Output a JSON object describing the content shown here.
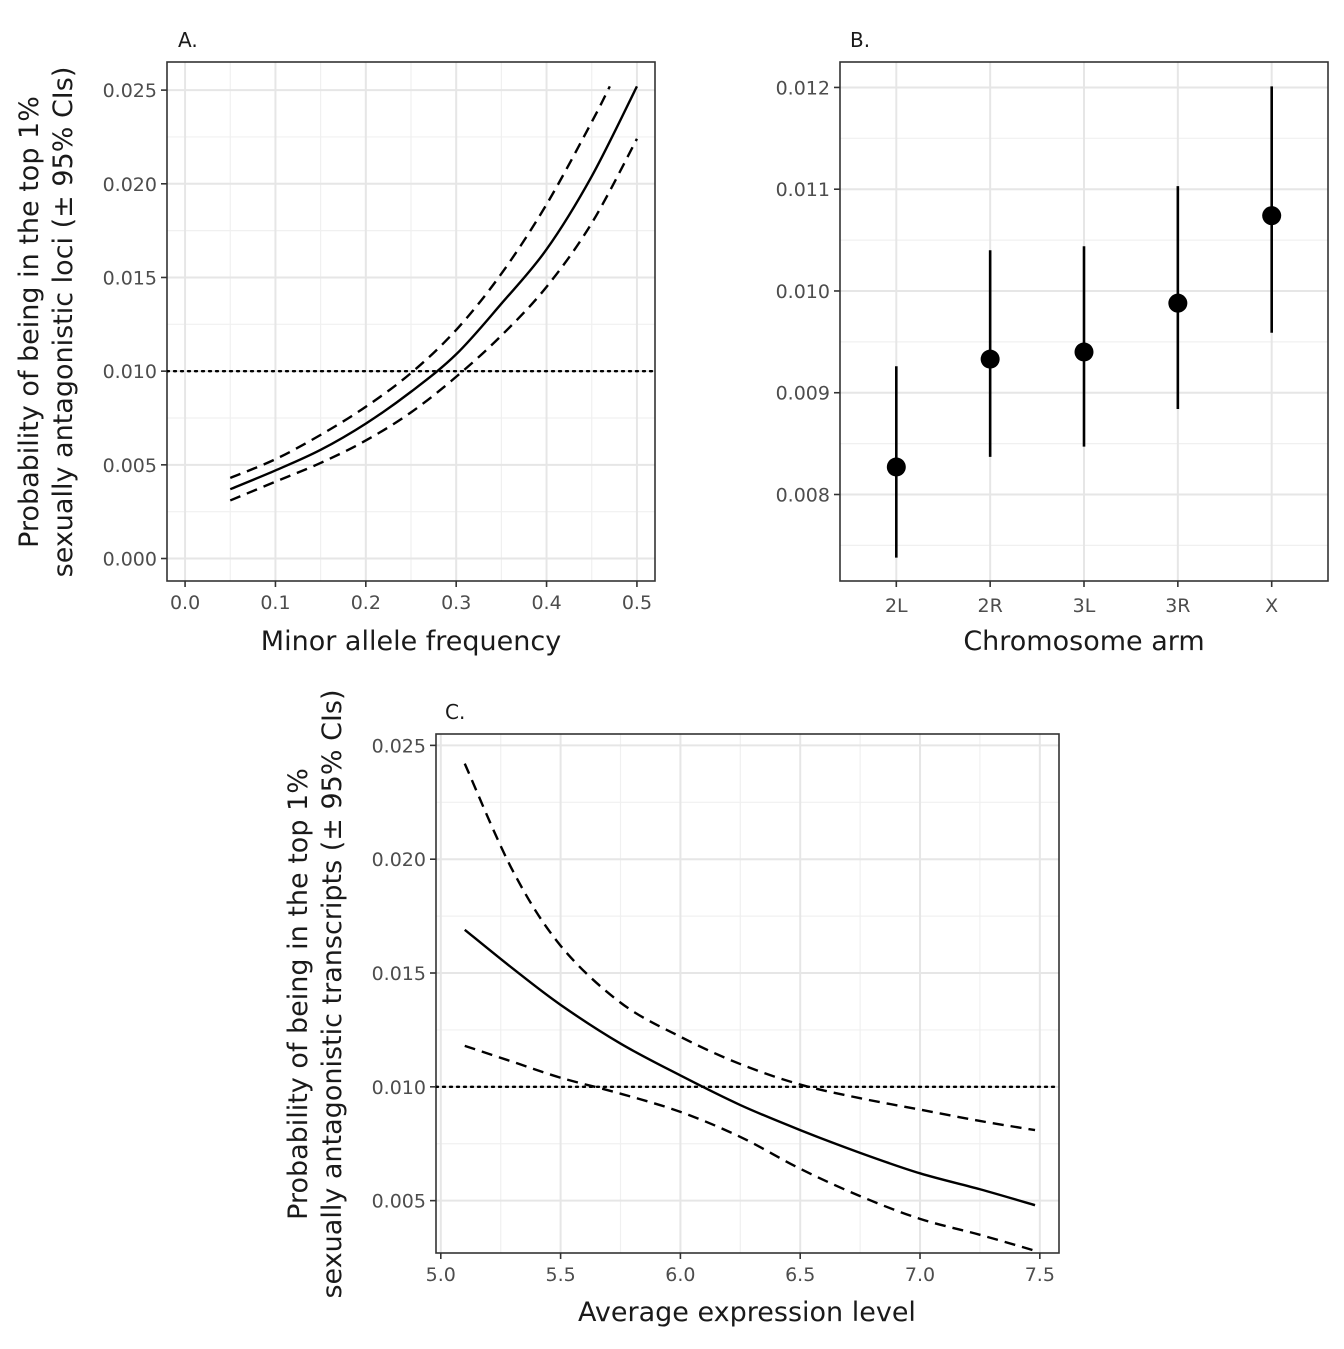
{
  "chart_data": [
    {
      "panel": "A.",
      "type": "line",
      "xlabel": "Minor allele frequency",
      "ylabel_lines": [
        "Probability of being in the top 1%",
        "sexually antagonistic loci (± 95% CIs)"
      ],
      "xlim": [
        -0.02,
        0.52
      ],
      "ylim": [
        -0.0012,
        0.0265
      ],
      "x_ticks": [
        0.0,
        0.1,
        0.2,
        0.3,
        0.4,
        0.5
      ],
      "x_tick_labels": [
        "0.0",
        "0.1",
        "0.2",
        "0.3",
        "0.4",
        "0.5"
      ],
      "y_ticks": [
        0.0,
        0.005,
        0.01,
        0.015,
        0.02,
        0.025
      ],
      "y_tick_labels": [
        "0.000",
        "0.005",
        "0.010",
        "0.015",
        "0.020",
        "0.025"
      ],
      "reference_line": {
        "y": 0.01,
        "style": "dotted"
      },
      "series": [
        {
          "role": "estimate",
          "style": "solid",
          "x": [
            0.05,
            0.1,
            0.15,
            0.2,
            0.25,
            0.3,
            0.35,
            0.4,
            0.45,
            0.5
          ],
          "y": [
            0.0037,
            0.0047,
            0.0058,
            0.0072,
            0.0089,
            0.0109,
            0.0136,
            0.0165,
            0.0204,
            0.0252
          ]
        },
        {
          "role": "upper_ci",
          "style": "dashed",
          "x": [
            0.05,
            0.1,
            0.15,
            0.2,
            0.25,
            0.3,
            0.35,
            0.4,
            0.45,
            0.47
          ],
          "y": [
            0.0043,
            0.0053,
            0.0066,
            0.0081,
            0.0099,
            0.0122,
            0.0152,
            0.0189,
            0.0233,
            0.0252
          ]
        },
        {
          "role": "lower_ci",
          "style": "dashed",
          "x": [
            0.05,
            0.1,
            0.15,
            0.2,
            0.25,
            0.3,
            0.35,
            0.4,
            0.45,
            0.5
          ],
          "y": [
            0.0031,
            0.0041,
            0.0051,
            0.0063,
            0.0078,
            0.0097,
            0.0119,
            0.0145,
            0.0179,
            0.0224
          ]
        }
      ]
    },
    {
      "panel": "B.",
      "type": "scatter",
      "xlabel": "Chromosome arm",
      "categories": [
        "2L",
        "2R",
        "3L",
        "3R",
        "X"
      ],
      "ylim": [
        0.00715,
        0.01225
      ],
      "y_ticks": [
        0.008,
        0.009,
        0.01,
        0.011,
        0.012
      ],
      "y_tick_labels": [
        "0.008",
        "0.009",
        "0.010",
        "0.011",
        "0.012"
      ],
      "estimates": [
        0.00827,
        0.00933,
        0.0094,
        0.00988,
        0.01074
      ],
      "lower": [
        0.00738,
        0.00837,
        0.00847,
        0.00884,
        0.00959
      ],
      "upper": [
        0.00926,
        0.0104,
        0.01044,
        0.01103,
        0.01201
      ]
    },
    {
      "panel": "C.",
      "type": "line",
      "xlabel": "Average expression level",
      "ylabel_lines": [
        "Probability of being in the top 1%",
        "sexually antagonistic transcripts (± 95% CIs)"
      ],
      "xlim": [
        4.98,
        7.58
      ],
      "ylim": [
        0.0027,
        0.0255
      ],
      "x_ticks": [
        5.0,
        5.5,
        6.0,
        6.5,
        7.0,
        7.5
      ],
      "x_tick_labels": [
        "5.0",
        "5.5",
        "6.0",
        "6.5",
        "7.0",
        "7.5"
      ],
      "y_ticks": [
        0.005,
        0.01,
        0.015,
        0.02,
        0.025
      ],
      "y_tick_labels": [
        "0.005",
        "0.010",
        "0.015",
        "0.020",
        "0.025"
      ],
      "reference_line": {
        "y": 0.01,
        "style": "dotted"
      },
      "series": [
        {
          "role": "estimate",
          "style": "solid",
          "x": [
            5.1,
            5.3,
            5.5,
            5.75,
            6.0,
            6.25,
            6.5,
            6.75,
            7.0,
            7.25,
            7.48
          ],
          "y": [
            0.0169,
            0.0152,
            0.0136,
            0.0119,
            0.0105,
            0.0092,
            0.0081,
            0.0071,
            0.0062,
            0.0055,
            0.0048
          ]
        },
        {
          "role": "upper_ci",
          "style": "dashed",
          "x": [
            5.1,
            5.3,
            5.5,
            5.75,
            6.0,
            6.25,
            6.5,
            6.75,
            7.0,
            7.25,
            7.48
          ],
          "y": [
            0.0242,
            0.0195,
            0.0162,
            0.0137,
            0.0122,
            0.011,
            0.0101,
            0.0095,
            0.009,
            0.0085,
            0.0081
          ]
        },
        {
          "role": "lower_ci",
          "style": "dashed",
          "x": [
            5.1,
            5.3,
            5.5,
            5.75,
            6.0,
            6.25,
            6.5,
            6.75,
            7.0,
            7.25,
            7.48
          ],
          "y": [
            0.0118,
            0.0111,
            0.0104,
            0.0097,
            0.0089,
            0.0078,
            0.0064,
            0.0052,
            0.0042,
            0.0035,
            0.0028
          ]
        }
      ]
    }
  ]
}
